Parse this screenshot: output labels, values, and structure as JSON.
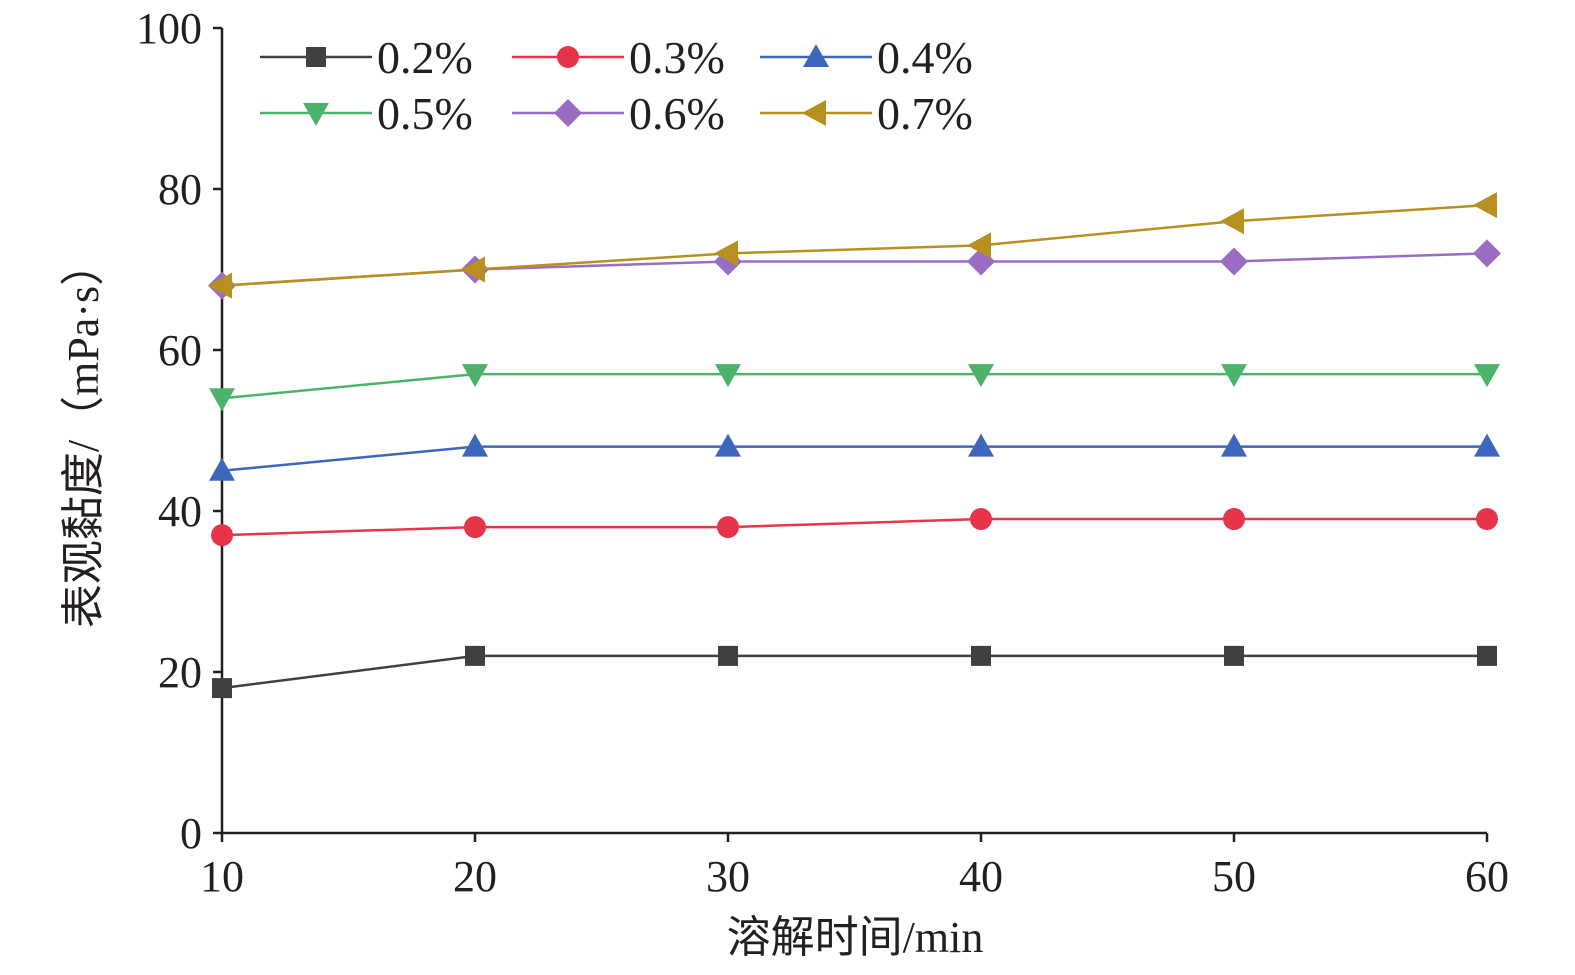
{
  "chart_data": {
    "type": "line",
    "xlabel": "溶解时间/min",
    "ylabel": "表观黏度/（mPa·s）",
    "x": [
      10,
      20,
      30,
      40,
      50,
      60
    ],
    "xlim": [
      10,
      60
    ],
    "ylim": [
      0,
      100
    ],
    "xticks": [
      10,
      20,
      30,
      40,
      50,
      60
    ],
    "xtick_labels": [
      "10",
      "20",
      "30",
      "40",
      "50",
      "60"
    ],
    "yticks": [
      0,
      20,
      40,
      60,
      80,
      100
    ],
    "ytick_labels": [
      "0",
      "20",
      "40",
      "60",
      "80",
      "100"
    ],
    "grid": false,
    "legend_position": "top-left",
    "series": [
      {
        "name": "0.2%",
        "values": [
          18,
          22,
          22,
          22,
          22,
          22
        ],
        "color": "#404040",
        "marker": "square"
      },
      {
        "name": "0.3%",
        "values": [
          37,
          38,
          38,
          39,
          39,
          39
        ],
        "color": "#e8344a",
        "marker": "circle"
      },
      {
        "name": "0.4%",
        "values": [
          45,
          48,
          48,
          48,
          48,
          48
        ],
        "color": "#3d66bd",
        "marker": "triangle-up"
      },
      {
        "name": "0.5%",
        "values": [
          54,
          57,
          57,
          57,
          57,
          57
        ],
        "color": "#4db36b",
        "marker": "triangle-down"
      },
      {
        "name": "0.6%",
        "values": [
          68,
          70,
          71,
          71,
          71,
          72
        ],
        "color": "#9a6cc4",
        "marker": "diamond"
      },
      {
        "name": "0.7%",
        "values": [
          68,
          70,
          72,
          73,
          76,
          78
        ],
        "color": "#b8901f",
        "marker": "triangle-left"
      }
    ]
  }
}
